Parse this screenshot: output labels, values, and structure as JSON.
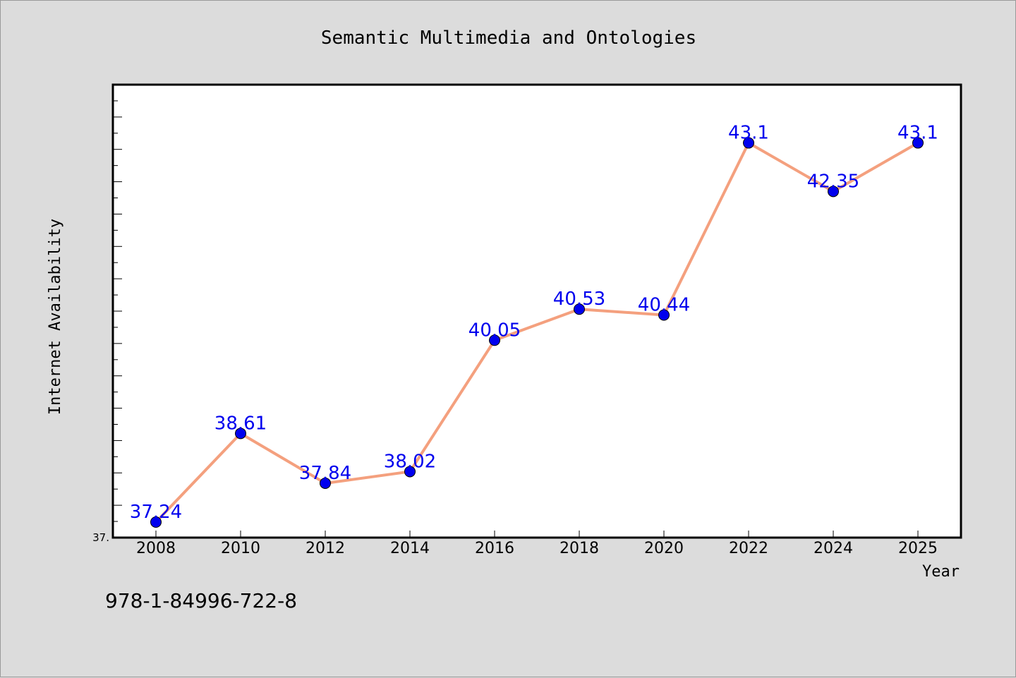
{
  "chart_data": {
    "type": "line",
    "title": "Semantic Multimedia and Ontologies",
    "xlabel": "Year",
    "ylabel": "Internet Availability",
    "x": [
      "2008",
      "2010",
      "2012",
      "2014",
      "2016",
      "2018",
      "2020",
      "2022",
      "2024",
      "2025"
    ],
    "series": [
      {
        "values": [
          37.24,
          38.61,
          37.84,
          38.02,
          40.05,
          40.53,
          40.44,
          43.1,
          42.35,
          43.1
        ],
        "data_labels": [
          "37.24",
          "38.61",
          "37.84",
          "38.02",
          "40.05",
          "40.53",
          "40.44",
          "43.1",
          "42.35",
          "43.1"
        ]
      }
    ],
    "ylim": [
      37.0,
      44.0
    ],
    "y_tick_labels": [
      "37."
    ],
    "grid": false,
    "legend": "none",
    "colors": {
      "line": "#f4a07e",
      "marker": "#0000ee",
      "label": "#0000ee",
      "background": "#dcdcdc",
      "plot_background": "#ffffff"
    }
  },
  "footer": {
    "isbn": "978-1-84996-722-8"
  }
}
